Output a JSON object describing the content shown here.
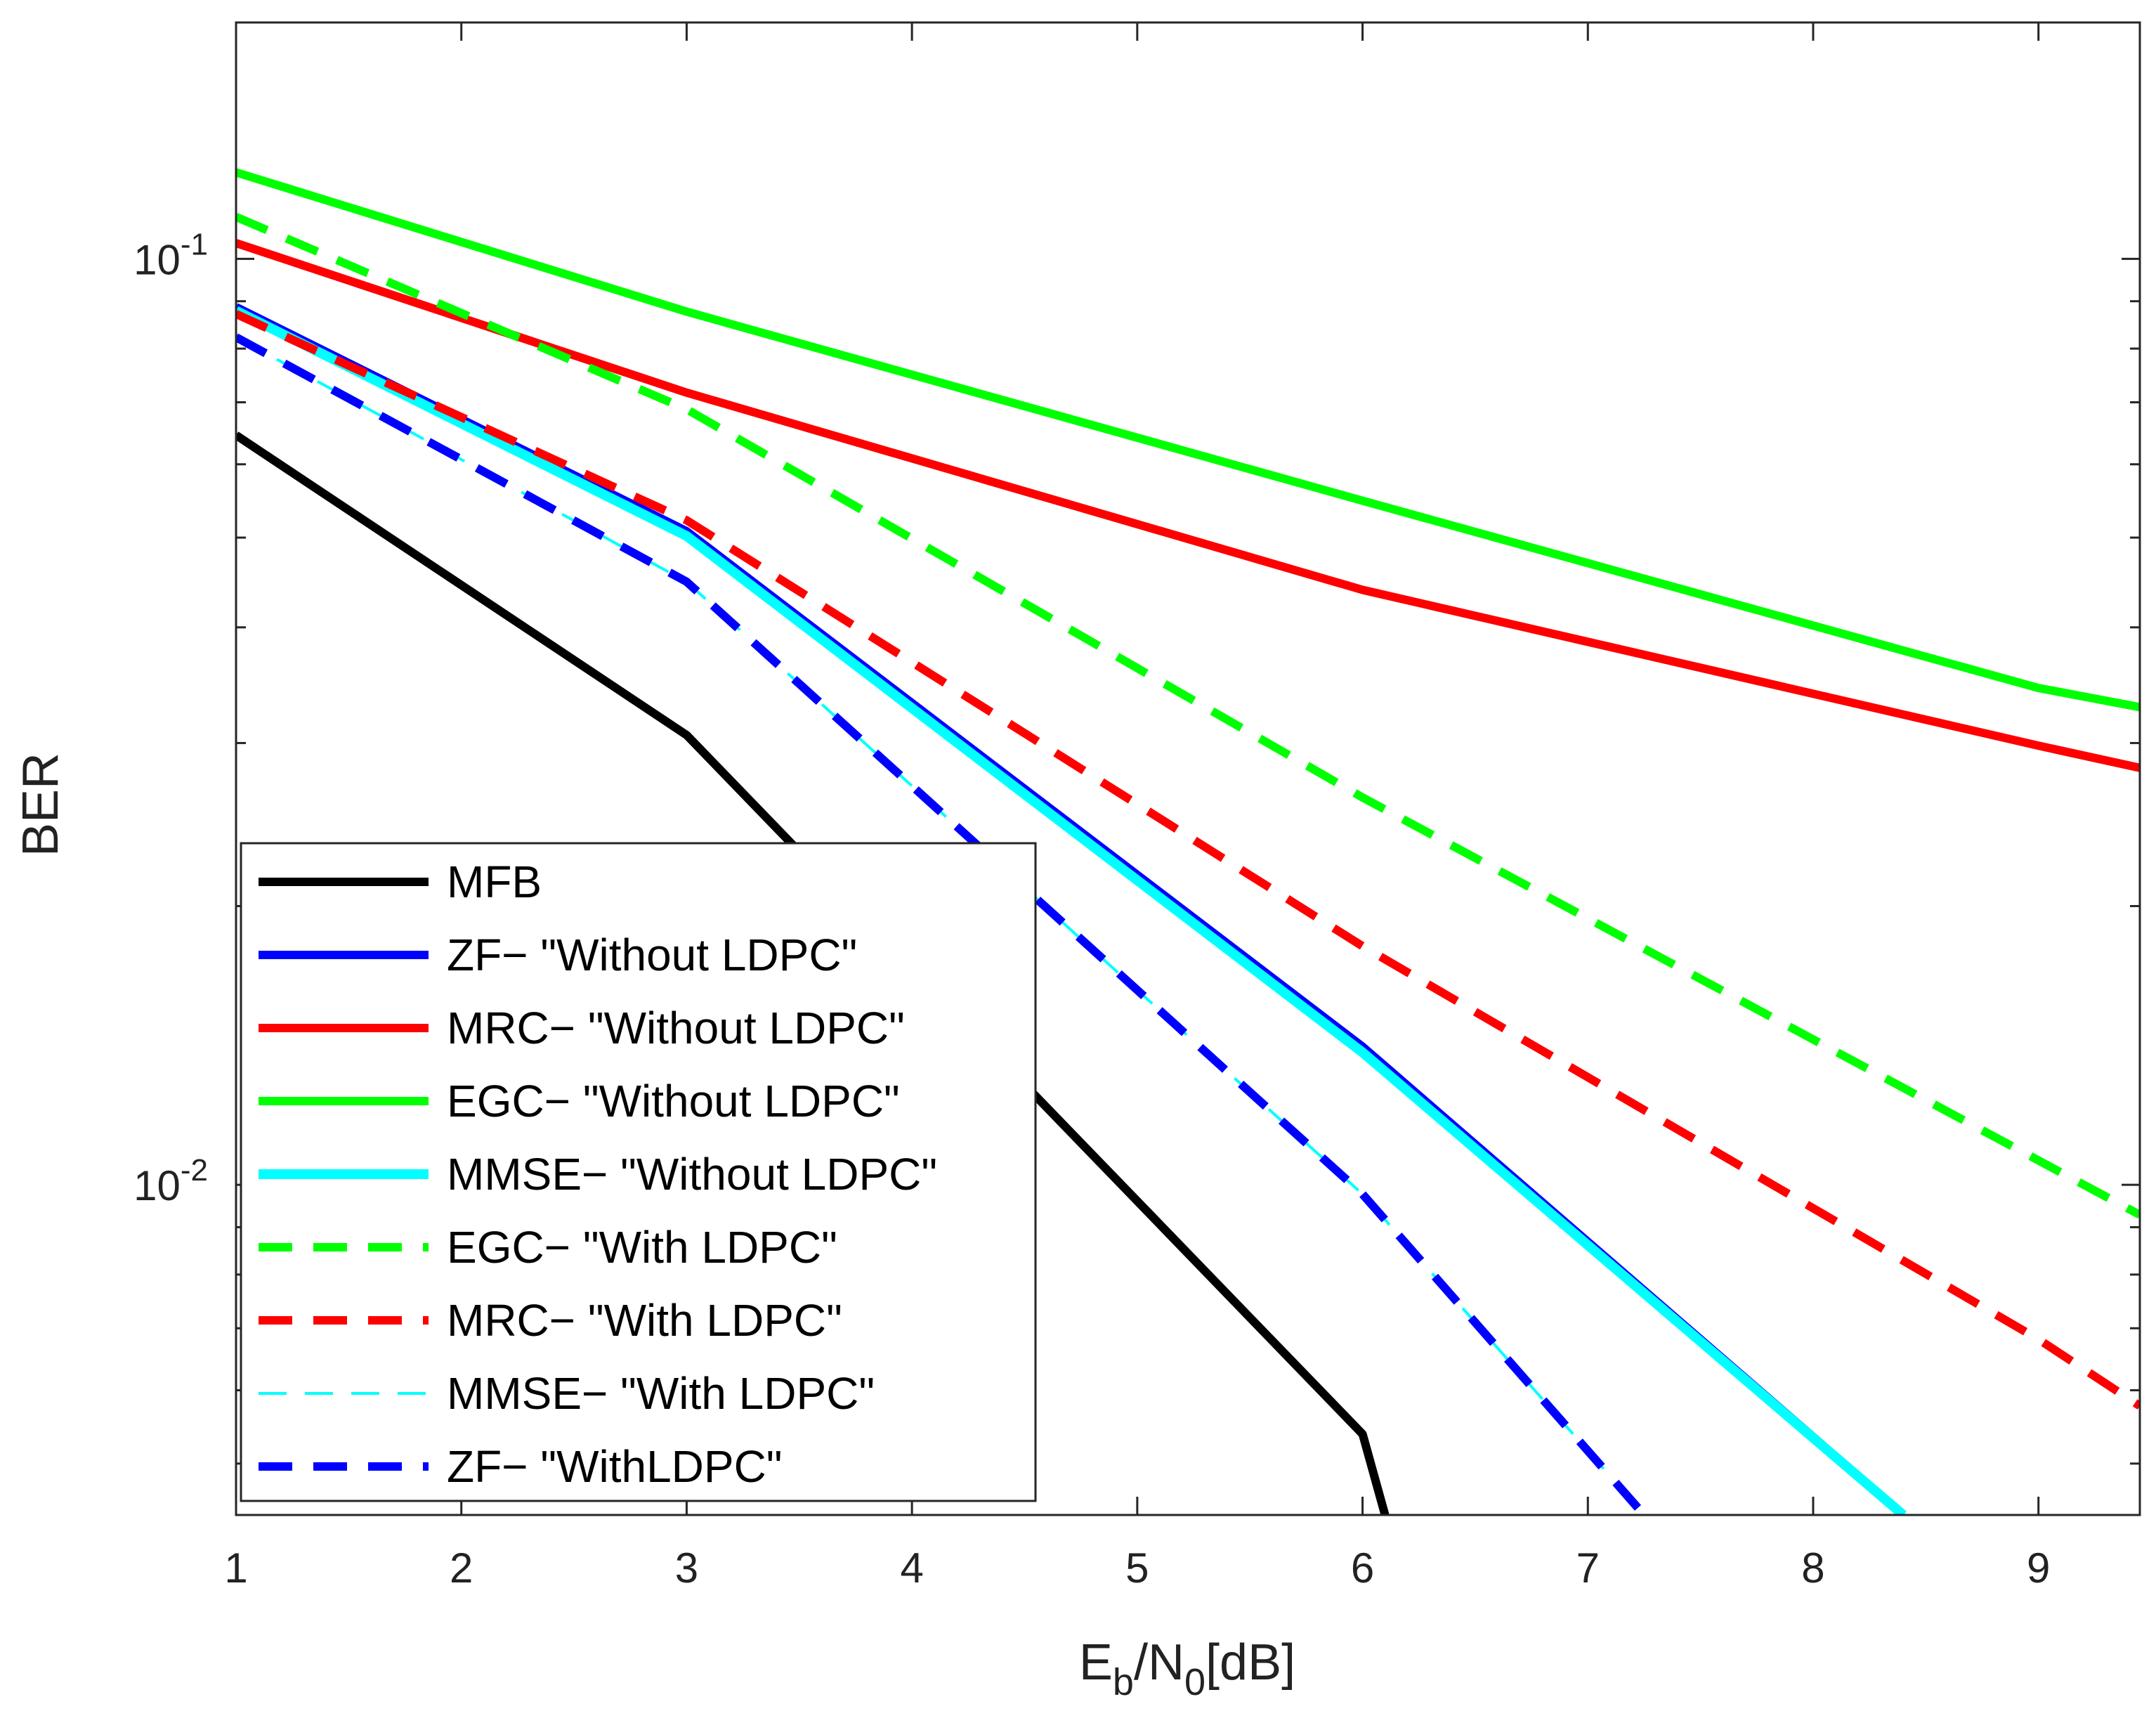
{
  "chart_data": {
    "type": "line",
    "xlabel": {
      "base": "E",
      "sub1": "b",
      "mid": "/N",
      "sub2": "0",
      "tail": "[dB]"
    },
    "ylabel": "BER",
    "y_scale": "log",
    "xlim": [
      1,
      9.45
    ],
    "ylim": [
      0.0044,
      0.18
    ],
    "x_ticks": [
      1,
      2,
      3,
      4,
      5,
      6,
      7,
      8,
      9
    ],
    "y_major_ticks": [
      {
        "value": 0.1,
        "base": "10",
        "exp": "-1"
      },
      {
        "value": 0.01,
        "base": "10",
        "exp": "-2"
      }
    ],
    "legend_position": "lower-left",
    "series": [
      {
        "name": "MFB",
        "color": "#000000",
        "style": "solid",
        "width": 12,
        "x": [
          1,
          3,
          6,
          6.1
        ],
        "y": [
          0.0645,
          0.0306,
          0.00538,
          0.0044
        ]
      },
      {
        "name": "ZF− \"Without LDPC\"",
        "color": "#0000ff",
        "style": "solid",
        "width": 12,
        "x": [
          1,
          3,
          6,
          8.4
        ],
        "y": [
          0.0887,
          0.0508,
          0.0141,
          0.0044
        ]
      },
      {
        "name": "MRC− \"Without LDPC\"",
        "color": "#ff0000",
        "style": "solid",
        "width": 12,
        "x": [
          1,
          3,
          6,
          9,
          9.45
        ],
        "y": [
          0.104,
          0.0717,
          0.0439,
          0.0298,
          0.0282
        ]
      },
      {
        "name": "EGC− \"Without LDPC\"",
        "color": "#00ff00",
        "style": "solid",
        "width": 12,
        "x": [
          1,
          3,
          6,
          9,
          9.45
        ],
        "y": [
          0.124,
          0.0877,
          0.0548,
          0.0344,
          0.0328
        ]
      },
      {
        "name": "MMSE− \"Without LDPC\"",
        "color": "#00ffff",
        "style": "solid",
        "width": 14,
        "x": [
          1,
          3,
          6,
          8.4
        ],
        "y": [
          0.0879,
          0.0502,
          0.0139,
          0.0044
        ]
      },
      {
        "name": "EGC− \"With LDPC\"",
        "color": "#00ff00",
        "style": "dashed",
        "width": 12,
        "x": [
          1,
          3,
          6,
          9.45
        ],
        "y": [
          0.111,
          0.0688,
          0.0262,
          0.00928
        ]
      },
      {
        "name": "MRC− \"With LDPC\"",
        "color": "#ff0000",
        "style": "dashed",
        "width": 12,
        "x": [
          1,
          3,
          6,
          9,
          9.45
        ],
        "y": [
          0.0872,
          0.0522,
          0.0181,
          0.00681,
          0.00577
        ]
      },
      {
        "name": "MMSE− \"With LDPC\"",
        "color": "#00ffff",
        "style": "thin-dashed",
        "width": 4,
        "x": [
          1,
          3,
          6,
          7.25
        ],
        "y": [
          0.0823,
          0.0448,
          0.00977,
          0.0044
        ]
      },
      {
        "name": "ZF− \"WithLDPC\"",
        "color": "#0000ff",
        "style": "dashed",
        "width": 12,
        "x": [
          1,
          3,
          6,
          7.25
        ],
        "y": [
          0.0823,
          0.0448,
          0.00977,
          0.0044
        ]
      }
    ]
  }
}
